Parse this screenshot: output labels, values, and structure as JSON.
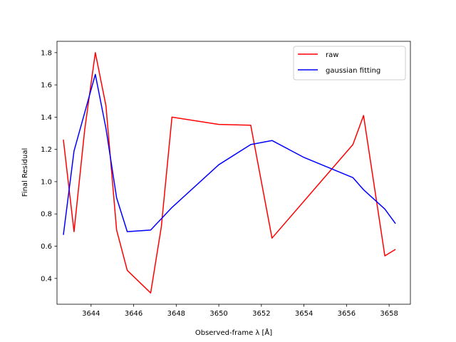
{
  "chart_data": {
    "type": "line",
    "xlabel": "Observed-frame λ [Å]",
    "ylabel": "Final Residual",
    "xlim": [
      3642.4,
      3659.0
    ],
    "ylim": [
      0.24,
      1.87
    ],
    "xticks": [
      3642,
      3644,
      3646,
      3648,
      3650,
      3652,
      3654,
      3656,
      3658
    ],
    "yticks": [
      0.4,
      0.6,
      0.8,
      1.0,
      1.2,
      1.4,
      1.6,
      1.8
    ],
    "grid": false,
    "legend_position": "top-right",
    "series": [
      {
        "name": "raw",
        "color": "#ff0000",
        "x": [
          3642.7,
          3643.2,
          3643.7,
          3644.2,
          3644.7,
          3645.2,
          3645.7,
          3646.8,
          3647.3,
          3647.8,
          3650.0,
          3651.5,
          3652.5,
          3656.3,
          3656.8,
          3657.8,
          3658.3
        ],
        "y": [
          1.26,
          0.69,
          1.32,
          1.8,
          1.47,
          0.7,
          0.45,
          0.31,
          0.72,
          1.4,
          1.355,
          1.35,
          0.65,
          1.23,
          1.41,
          0.54,
          0.58
        ]
      },
      {
        "name": "gaussian fitting",
        "color": "#0000ff",
        "x": [
          3642.7,
          3643.2,
          3644.2,
          3644.7,
          3645.2,
          3645.7,
          3646.8,
          3647.8,
          3650.0,
          3651.5,
          3652.5,
          3654.0,
          3656.3,
          3656.8,
          3657.8,
          3658.3
        ],
        "y": [
          0.67,
          1.19,
          1.665,
          1.33,
          0.9,
          0.69,
          0.7,
          0.84,
          1.105,
          1.23,
          1.255,
          1.15,
          1.025,
          0.95,
          0.83,
          0.74
        ]
      }
    ]
  }
}
